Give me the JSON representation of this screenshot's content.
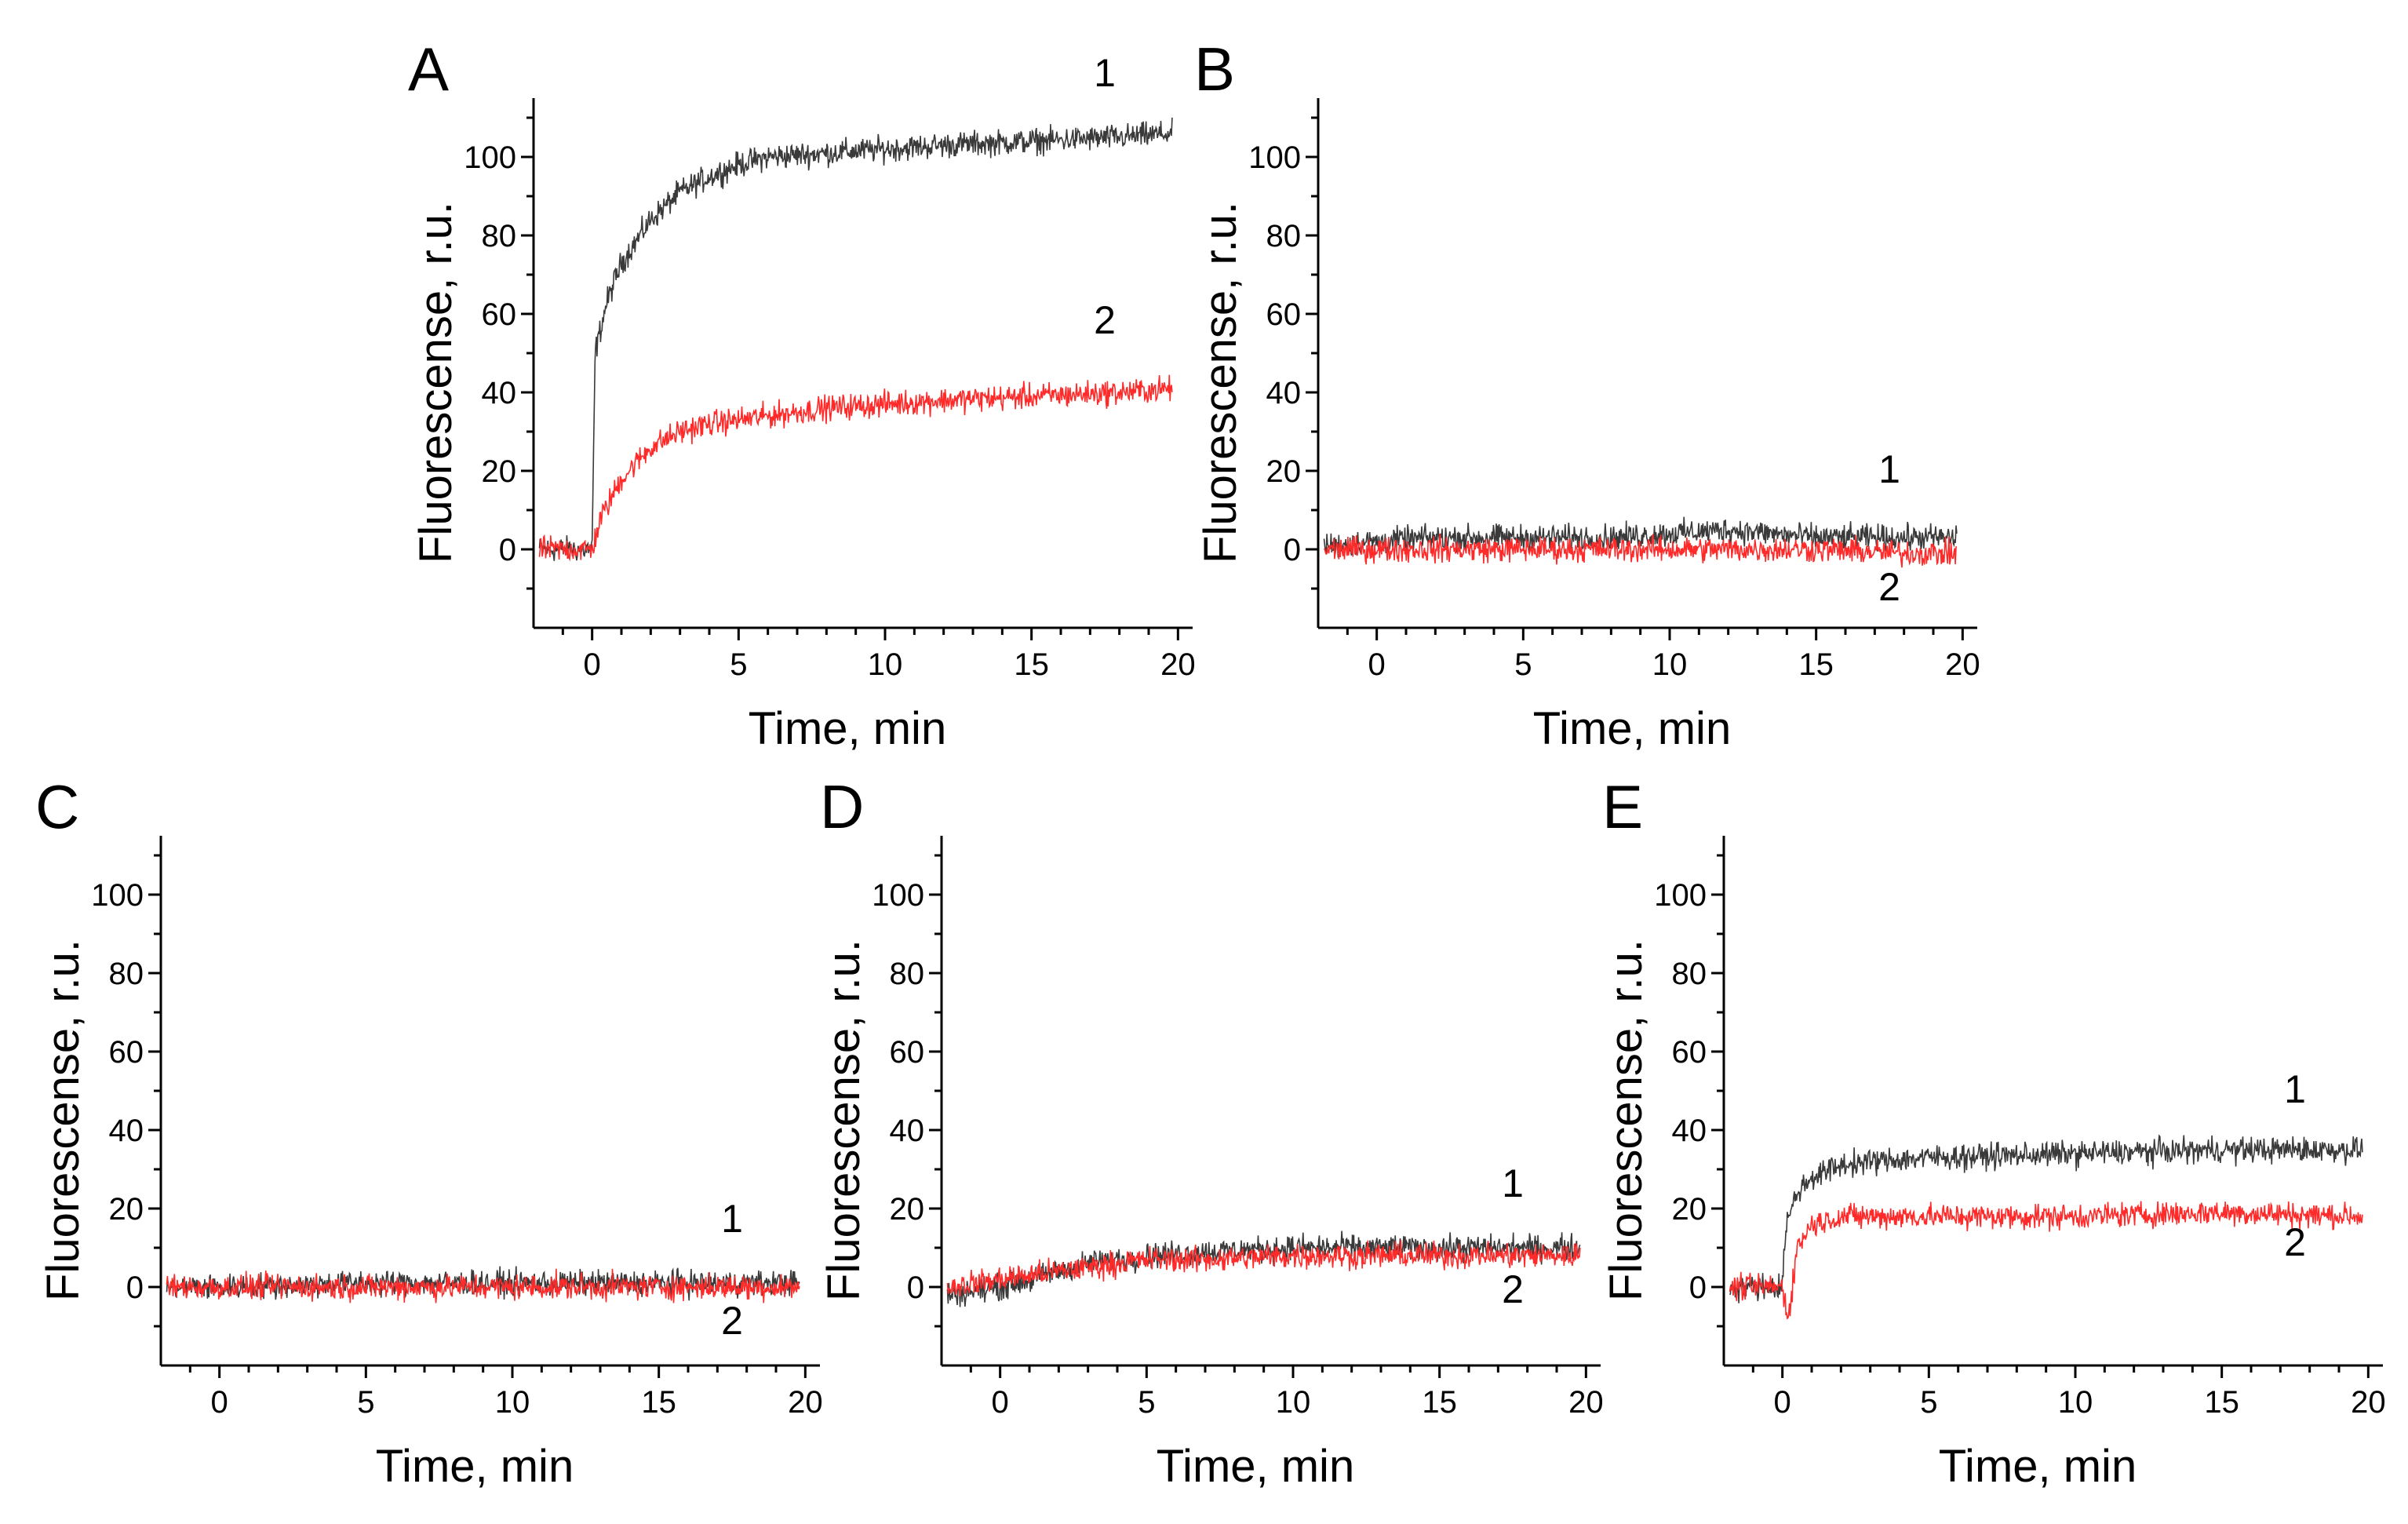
{
  "colors": {
    "series1": "#3a3a3a",
    "series2": "#ff2a2a",
    "axis": "#000000"
  },
  "chart_data": [
    {
      "panel": "A",
      "type": "line",
      "xlabel": "Time, min",
      "ylabel": "Fluorescense, r.u.",
      "xlim": [
        -2,
        20.5
      ],
      "ylim": [
        -20,
        115
      ],
      "xticks": [
        0,
        5,
        10,
        15,
        20
      ],
      "yticks": [
        0,
        20,
        40,
        60,
        80,
        100
      ],
      "series": [
        {
          "name": "1",
          "color": "#3a3a3a",
          "x": [
            -1.8,
            0,
            0.1,
            0.5,
            1,
            2,
            3,
            4,
            5,
            6,
            8,
            10,
            12,
            15,
            18,
            19.8
          ],
          "y": [
            0,
            0,
            50,
            63,
            73,
            84,
            91,
            95,
            98,
            100,
            101,
            102,
            103,
            104,
            105,
            106
          ]
        },
        {
          "name": "2",
          "color": "#ff2a2a",
          "x": [
            -1.8,
            0,
            0.3,
            1,
            2,
            3,
            4,
            5,
            6,
            8,
            10,
            12,
            15,
            18,
            19.8
          ],
          "y": [
            0,
            0,
            8,
            18,
            26,
            30,
            32,
            33,
            34,
            36,
            37,
            38,
            39,
            40,
            41
          ]
        }
      ],
      "curve_labels": [
        {
          "text": "1",
          "x": 17.5,
          "y": 118
        },
        {
          "text": "2",
          "x": 17.5,
          "y": 55
        }
      ]
    },
    {
      "panel": "B",
      "type": "line",
      "xlabel": "Time, min",
      "ylabel": "Fluorescense, r.u.",
      "xlim": [
        -2,
        20.5
      ],
      "ylim": [
        -20,
        115
      ],
      "xticks": [
        0,
        5,
        10,
        15,
        20
      ],
      "yticks": [
        0,
        20,
        40,
        60,
        80,
        100
      ],
      "series": [
        {
          "name": "1",
          "color": "#3a3a3a",
          "x": [
            -1.8,
            0,
            2,
            5,
            8,
            10,
            12,
            15,
            18,
            19.8
          ],
          "y": [
            1,
            2,
            3,
            3,
            3,
            4,
            5,
            3,
            3,
            3
          ]
        },
        {
          "name": "2",
          "color": "#ff2a2a",
          "x": [
            -1.8,
            0,
            2,
            5,
            8,
            10,
            12,
            15,
            18,
            19.8
          ],
          "y": [
            0,
            0,
            0,
            0,
            0,
            0,
            0,
            0,
            -1,
            -1
          ]
        }
      ],
      "curve_labels": [
        {
          "text": "1",
          "x": 17.5,
          "y": 17
        },
        {
          "text": "2",
          "x": 17.5,
          "y": -13
        }
      ]
    },
    {
      "panel": "C",
      "type": "line",
      "xlabel": "Time, min",
      "ylabel": "Fluorescense, r.u.",
      "xlim": [
        -2,
        20.5
      ],
      "ylim": [
        -20,
        115
      ],
      "xticks": [
        0,
        5,
        10,
        15,
        20
      ],
      "yticks": [
        0,
        20,
        40,
        60,
        80,
        100
      ],
      "series": [
        {
          "name": "1",
          "color": "#3a3a3a",
          "x": [
            -1.8,
            0,
            5,
            10,
            15,
            19.8
          ],
          "y": [
            0,
            0,
            1,
            1,
            1,
            1
          ]
        },
        {
          "name": "2",
          "color": "#ff2a2a",
          "x": [
            -1.8,
            0,
            5,
            10,
            15,
            19.8
          ],
          "y": [
            0,
            0,
            0,
            0,
            0,
            0
          ]
        }
      ],
      "curve_labels": [
        {
          "text": "1",
          "x": 17.5,
          "y": 14
        },
        {
          "text": "2",
          "x": 17.5,
          "y": -12
        }
      ]
    },
    {
      "panel": "D",
      "type": "line",
      "xlabel": "Time, min",
      "ylabel": "Fluorescense, r.u.",
      "xlim": [
        -2,
        20.5
      ],
      "ylim": [
        -20,
        115
      ],
      "xticks": [
        0,
        5,
        10,
        15,
        20
      ],
      "yticks": [
        0,
        20,
        40,
        60,
        80,
        100
      ],
      "series": [
        {
          "name": "1",
          "color": "#3a3a3a",
          "x": [
            -1.8,
            0,
            1,
            2,
            3,
            4,
            5,
            7,
            10,
            15,
            19.8
          ],
          "y": [
            -2,
            0,
            2,
            4,
            6,
            7,
            8,
            9,
            10,
            10,
            10
          ]
        },
        {
          "name": "2",
          "color": "#ff2a2a",
          "x": [
            -1.8,
            0,
            1,
            2,
            3,
            4,
            5,
            7,
            10,
            15,
            19.8
          ],
          "y": [
            0,
            2,
            3,
            4,
            5,
            6,
            7,
            7,
            8,
            8,
            8
          ]
        }
      ],
      "curve_labels": [
        {
          "text": "1",
          "x": 17.5,
          "y": 23
        },
        {
          "text": "2",
          "x": 17.5,
          "y": -4
        }
      ]
    },
    {
      "panel": "E",
      "type": "line",
      "xlabel": "Time, min",
      "ylabel": "Fluorescense, r.u.",
      "xlim": [
        -2,
        20.5
      ],
      "ylim": [
        -20,
        115
      ],
      "xticks": [
        0,
        5,
        10,
        15,
        20
      ],
      "yticks": [
        0,
        20,
        40,
        60,
        80,
        100
      ],
      "series": [
        {
          "name": "1",
          "color": "#3a3a3a",
          "x": [
            -1.8,
            0,
            0.1,
            0.5,
            1,
            2,
            3,
            5,
            10,
            15,
            19.8
          ],
          "y": [
            0,
            0,
            15,
            24,
            28,
            31,
            32,
            33,
            34,
            35,
            35
          ]
        },
        {
          "name": "2",
          "color": "#ff2a2a",
          "x": [
            -1.8,
            0,
            0.2,
            0.5,
            1,
            2,
            3,
            5,
            10,
            15,
            19.8
          ],
          "y": [
            0,
            0,
            -8,
            10,
            16,
            18,
            18,
            18,
            18,
            19,
            18
          ]
        }
      ],
      "curve_labels": [
        {
          "text": "1",
          "x": 17.5,
          "y": 47
        },
        {
          "text": "2",
          "x": 17.5,
          "y": 8
        }
      ]
    }
  ]
}
